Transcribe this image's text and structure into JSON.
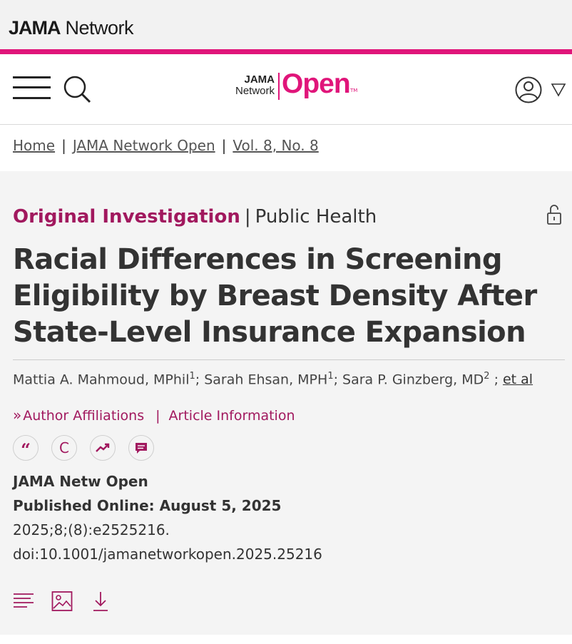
{
  "brand": {
    "prefix": "JAMA",
    "suffix": " Network"
  },
  "logo": {
    "line1": "JAMA",
    "line2": "Network",
    "word": "Open",
    "tm": "TM"
  },
  "icons": {
    "menu": "hamburger-menu-icon",
    "search": "search-icon",
    "user": "user-account-icon",
    "caret": "caret-down-icon",
    "lock": "open-access-unlock-icon",
    "cite": "cite-quote-icon",
    "permissions": "permissions-c-icon",
    "metrics": "metrics-trend-icon",
    "comment": "comment-icon",
    "fulltext": "full-text-icon",
    "figures": "figures-image-icon",
    "download": "download-icon"
  },
  "colors": {
    "accent": "#e0157a",
    "article_accent": "#a1185e"
  },
  "breadcrumb": {
    "home": "Home",
    "journal": "JAMA Network Open",
    "issue": "Vol. 8, No. 8",
    "separator": "|"
  },
  "article": {
    "type": "Original Investigation",
    "divider": "|",
    "topic": "Public Health",
    "title": "Racial Differences in Screening Eligibility by Breast Density After State-Level Insurance Expansion",
    "authors": [
      {
        "name": "Mattia A. Mahmoud, MPhil",
        "sup": "1"
      },
      {
        "name": "Sarah Ehsan, MPH",
        "sup": "1"
      },
      {
        "name": "Sara P. Ginzberg, MD",
        "sup": "2"
      }
    ],
    "author_sep": ";",
    "et_al": "et al",
    "author_affiliations": "Author Affiliations",
    "article_information": "Article Information",
    "affil_pipe": "|",
    "tools": {
      "cite": "“",
      "permissions": "C"
    },
    "journal_abbr": "JAMA Netw Open",
    "published": "Published Online: August 5, 2025",
    "citation": "2025;8;(8):e2525216.",
    "doi": "doi:10.1001/jamanetworkopen.2025.25216"
  }
}
